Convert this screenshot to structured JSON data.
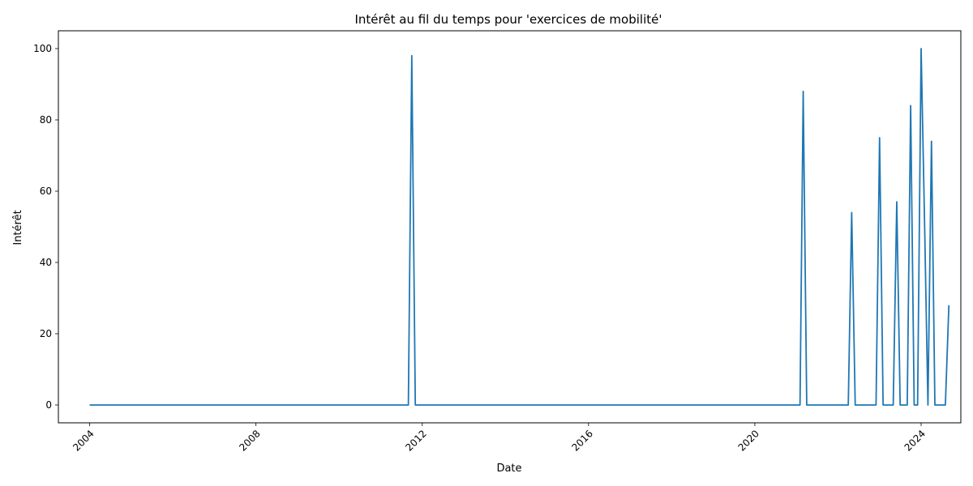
{
  "chart_data": {
    "type": "line",
    "title": "Intérêt au fil du temps pour 'exercices de mobilité'",
    "xlabel": "Date",
    "ylabel": "Intérêt",
    "xlim": [
      "2003-04-01",
      "2024-12-15"
    ],
    "ylim": [
      -5,
      105
    ],
    "x_ticks": [
      "2004",
      "2008",
      "2012",
      "2016",
      "2020",
      "2024"
    ],
    "y_ticks": [
      0,
      20,
      40,
      60,
      80,
      100
    ],
    "grid": false,
    "color": "#1f77b4",
    "series": [
      {
        "x": [
          "2004-01-01",
          "2011-09-01",
          "2011-10-01",
          "2011-11-01",
          "2021-02-01",
          "2021-03-01",
          "2021-04-01",
          "2022-04-01",
          "2022-05-01",
          "2022-06-01",
          "2022-12-01",
          "2023-01-01",
          "2023-02-01",
          "2023-05-01",
          "2023-06-01",
          "2023-07-01",
          "2023-09-01",
          "2023-10-01",
          "2023-11-01",
          "2023-12-01",
          "2024-01-01",
          "2024-02-01",
          "2024-03-01",
          "2024-04-01",
          "2024-05-01",
          "2024-08-01",
          "2024-09-01"
        ],
        "values": [
          0,
          0,
          98,
          0,
          0,
          88,
          0,
          0,
          54,
          0,
          0,
          75,
          0,
          0,
          57,
          0,
          0,
          84,
          0,
          0,
          100,
          50,
          0,
          74,
          0,
          0,
          28
        ]
      }
    ]
  }
}
